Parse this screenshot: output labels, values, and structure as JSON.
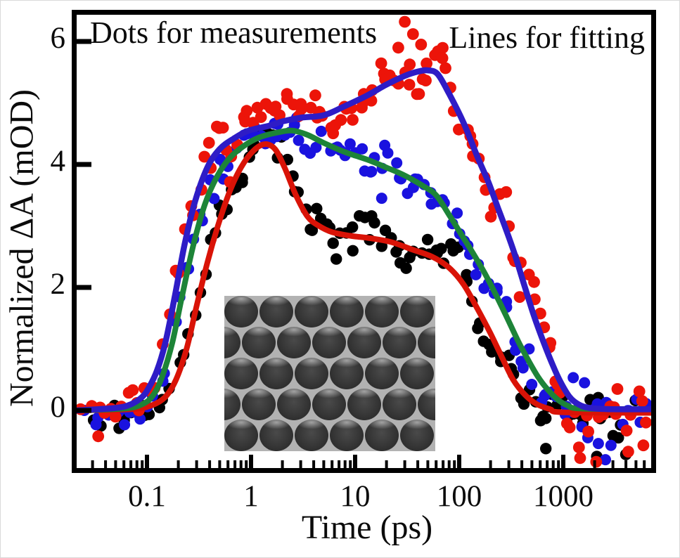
{
  "chart_data": {
    "type": "scatter",
    "title": "",
    "xlabel": "Time (ps)",
    "ylabel": "Normalized ΔA (mOD)",
    "xscale": "log",
    "xlim": [
      0.021,
      7000
    ],
    "ylim": [
      -1.02,
      6.51
    ],
    "grid": false,
    "legend": "none",
    "x_ticks": {
      "values": [
        0.1,
        1,
        10,
        100,
        1000
      ],
      "labels": [
        "0.1",
        "1",
        "10",
        "100",
        "1000"
      ]
    },
    "y_ticks": {
      "values": [
        0,
        2,
        4,
        6
      ],
      "labels": [
        "0",
        "2",
        "4",
        "6"
      ]
    },
    "annotations": {
      "dots_label": "Dots for measurements",
      "lines_label": "Lines for fitting"
    },
    "fit_lines": [
      {
        "name": "fit-line-blue",
        "color": "#2e1cc6",
        "stroke_width": 8.5,
        "fits_dots": "red",
        "points": [
          [
            0.021,
            0
          ],
          [
            0.05,
            0.04
          ],
          [
            0.07,
            0.1
          ],
          [
            0.09,
            0.22
          ],
          [
            0.105,
            0.38
          ],
          [
            0.125,
            0.65
          ],
          [
            0.15,
            1.1
          ],
          [
            0.185,
            1.85
          ],
          [
            0.23,
            2.7
          ],
          [
            0.29,
            3.4
          ],
          [
            0.38,
            3.95
          ],
          [
            0.5,
            4.25
          ],
          [
            0.68,
            4.42
          ],
          [
            0.95,
            4.55
          ],
          [
            1.5,
            4.63
          ],
          [
            2,
            4.7
          ],
          [
            3,
            4.76
          ],
          [
            5,
            4.8
          ],
          [
            8,
            4.95
          ],
          [
            13,
            5.12
          ],
          [
            20,
            5.3
          ],
          [
            30,
            5.44
          ],
          [
            40,
            5.51
          ],
          [
            50,
            5.53
          ],
          [
            62,
            5.47
          ],
          [
            80,
            5.15
          ],
          [
            110,
            4.68
          ],
          [
            150,
            4.12
          ],
          [
            190,
            3.72
          ],
          [
            235,
            3.3
          ],
          [
            285,
            2.92
          ],
          [
            340,
            2.55
          ],
          [
            420,
            2.05
          ],
          [
            520,
            1.55
          ],
          [
            650,
            1.1
          ],
          [
            800,
            0.72
          ],
          [
            950,
            0.45
          ],
          [
            1150,
            0.22
          ],
          [
            1400,
            0.1
          ],
          [
            1800,
            0.04
          ],
          [
            3000,
            0.02
          ],
          [
            7000,
            0.02
          ]
        ]
      },
      {
        "name": "fit-line-green",
        "color": "#1d8438",
        "stroke_width": 8,
        "fits_dots": "blue",
        "points": [
          [
            0.021,
            0
          ],
          [
            0.06,
            0.03
          ],
          [
            0.09,
            0.1
          ],
          [
            0.115,
            0.25
          ],
          [
            0.14,
            0.55
          ],
          [
            0.175,
            1.1
          ],
          [
            0.22,
            1.9
          ],
          [
            0.28,
            2.7
          ],
          [
            0.36,
            3.35
          ],
          [
            0.47,
            3.8
          ],
          [
            0.62,
            4.1
          ],
          [
            0.85,
            4.3
          ],
          [
            1.2,
            4.44
          ],
          [
            1.8,
            4.52
          ],
          [
            2.5,
            4.55
          ],
          [
            3.5,
            4.48
          ],
          [
            5,
            4.35
          ],
          [
            8,
            4.2
          ],
          [
            13,
            4.08
          ],
          [
            20,
            3.95
          ],
          [
            30,
            3.82
          ],
          [
            45,
            3.65
          ],
          [
            60,
            3.5
          ],
          [
            80,
            3.18
          ],
          [
            105,
            2.86
          ],
          [
            140,
            2.52
          ],
          [
            180,
            2.2
          ],
          [
            230,
            1.85
          ],
          [
            290,
            1.5
          ],
          [
            370,
            1.12
          ],
          [
            460,
            0.82
          ],
          [
            570,
            0.55
          ],
          [
            700,
            0.35
          ],
          [
            880,
            0.18
          ],
          [
            1100,
            0.08
          ],
          [
            1500,
            0.03
          ],
          [
            7000,
            0.02
          ]
        ]
      },
      {
        "name": "fit-line-red",
        "color": "#d91307",
        "stroke_width": 8,
        "fits_dots": "black",
        "points": [
          [
            0.021,
            0
          ],
          [
            0.07,
            0.02
          ],
          [
            0.11,
            0.08
          ],
          [
            0.15,
            0.22
          ],
          [
            0.19,
            0.5
          ],
          [
            0.24,
            1.0
          ],
          [
            0.3,
            1.7
          ],
          [
            0.38,
            2.4
          ],
          [
            0.48,
            3.0
          ],
          [
            0.62,
            3.55
          ],
          [
            0.8,
            3.95
          ],
          [
            1.05,
            4.22
          ],
          [
            1.35,
            4.33
          ],
          [
            1.7,
            4.25
          ],
          [
            2.1,
            3.95
          ],
          [
            2.7,
            3.5
          ],
          [
            3.5,
            3.15
          ],
          [
            4.5,
            3.0
          ],
          [
            6,
            2.9
          ],
          [
            9,
            2.84
          ],
          [
            14,
            2.8
          ],
          [
            22,
            2.74
          ],
          [
            35,
            2.62
          ],
          [
            55,
            2.5
          ],
          [
            80,
            2.32
          ],
          [
            110,
            2.05
          ],
          [
            150,
            1.65
          ],
          [
            200,
            1.25
          ],
          [
            260,
            0.85
          ],
          [
            330,
            0.5
          ],
          [
            430,
            0.25
          ],
          [
            560,
            0.1
          ],
          [
            750,
            0.02
          ],
          [
            1000,
            -0.03
          ],
          [
            7000,
            -0.04
          ]
        ]
      }
    ],
    "dot_series": [
      {
        "name": "dots-red",
        "color": "#ec1409",
        "radius": 8.4,
        "n": 135,
        "seed": 7,
        "t_min": 0.03,
        "t_max": 6800,
        "trend_line": 0,
        "sigma": {
          "rise": 0.12,
          "mid": 0.21,
          "tail": 0.28
        },
        "tail_trend": [
          [
            850,
            0.35
          ],
          [
            1000,
            0.05
          ],
          [
            1300,
            -0.15
          ],
          [
            2000,
            -0.2
          ],
          [
            7000,
            -0.18
          ]
        ],
        "outliers": [
          [
            0.023,
            0.02
          ],
          [
            0.034,
            -0.42
          ],
          [
            0.073,
            0.33
          ],
          [
            26,
            5.9
          ],
          [
            30,
            6.32
          ],
          [
            36,
            6.12
          ],
          [
            43,
            5.95
          ]
        ]
      },
      {
        "name": "dots-blue",
        "color": "#1a12df",
        "radius": 8.0,
        "n": 125,
        "seed": 13,
        "t_min": 0.03,
        "t_max": 6800,
        "trend_line": 1,
        "sigma": {
          "rise": 0.09,
          "mid": 0.16,
          "tail": 0.26
        },
        "tail_trend": [
          [
            850,
            0.3
          ],
          [
            1000,
            0.0
          ],
          [
            1400,
            -0.18
          ],
          [
            2200,
            -0.25
          ],
          [
            7000,
            -0.2
          ]
        ],
        "outliers": [
          [
            0.025,
            0.0
          ],
          [
            18,
            3.45
          ],
          [
            1600,
            0.45
          ]
        ]
      },
      {
        "name": "dots-black",
        "color": "#000000",
        "radius": 8.2,
        "n": 118,
        "seed": 29,
        "t_min": 0.03,
        "t_max": 4800,
        "trend_line": 2,
        "sigma": {
          "rise": 0.1,
          "mid": 0.16,
          "tail": 0.25
        },
        "tail_trend": [
          [
            850,
            0.15
          ],
          [
            1100,
            0.0
          ],
          [
            1600,
            -0.08
          ],
          [
            5000,
            -0.1
          ]
        ],
        "outliers": [
          [
            0.054,
            -0.29
          ],
          [
            0.095,
            -0.08
          ],
          [
            680,
            -0.62
          ],
          [
            2100,
            -0.75
          ]
        ]
      }
    ]
  },
  "inset": {
    "description": "SEM image of hexagonally close-packed dark microspheres",
    "rows": 5,
    "cols": 7,
    "bg_color": "#b2b2b2",
    "sphere_dark": "#2c2c2c",
    "sphere_highlight": "#9a9a9a"
  },
  "colors": {
    "axis": "#000000",
    "text": "#0b0b0b",
    "background": "#ffffff"
  }
}
